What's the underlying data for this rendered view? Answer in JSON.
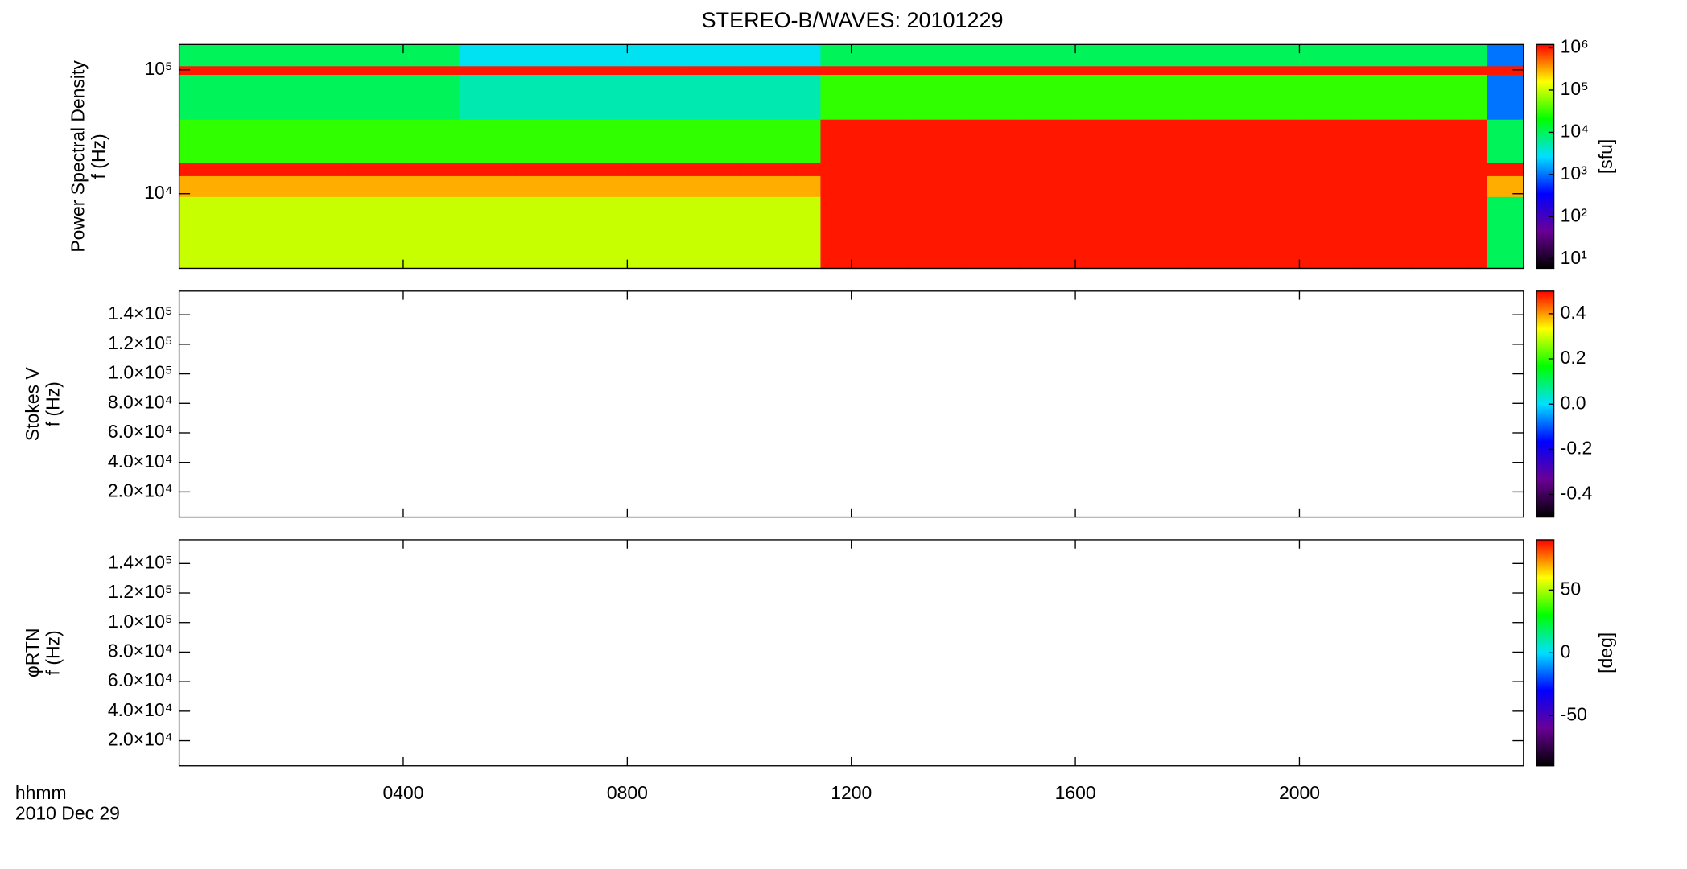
{
  "chart_data": [
    {
      "type": "heatmap",
      "title": "STEREO-B/WAVES: 20101229",
      "ylabel": [
        "Power Spectral Density",
        "f (Hz)"
      ],
      "xlim": [
        0,
        24
      ],
      "ylim": [
        2500,
        160000
      ],
      "yscale": "log",
      "yticks": [
        {
          "value": 10000,
          "label": "10⁴"
        },
        {
          "value": 100000,
          "label": "10⁵"
        }
      ],
      "x_bins": [
        0,
        1,
        2,
        3,
        4,
        5,
        6,
        7,
        8,
        9,
        10,
        11,
        11.45,
        12,
        13,
        14,
        15,
        16,
        17,
        18,
        19,
        20,
        21,
        22,
        23,
        23.35,
        24
      ],
      "y_bins": [
        2500,
        9500,
        14000,
        18000,
        40000,
        92000,
        108000,
        160000
      ],
      "values": [
        [
          100000,
          100000,
          100000,
          100000,
          100000,
          100000,
          100000,
          100000,
          100000,
          100000,
          100000,
          100000,
          1000000,
          1000000,
          1000000,
          1000000,
          1000000,
          1000000,
          1000000,
          1000000,
          1000000,
          1000000,
          1000000,
          1000000,
          1000000,
          10000
        ],
        [
          300000,
          300000,
          300000,
          300000,
          300000,
          300000,
          300000,
          300000,
          300000,
          300000,
          300000,
          300000,
          1000000,
          1000000,
          1000000,
          1000000,
          1000000,
          1000000,
          1000000,
          1000000,
          1000000,
          1000000,
          1000000,
          1000000,
          1000000,
          300000
        ],
        [
          1000000,
          1000000,
          1000000,
          1000000,
          1000000,
          1000000,
          1000000,
          1000000,
          1000000,
          1000000,
          1000000,
          1000000,
          1000000,
          1000000,
          1000000,
          1000000,
          1000000,
          1000000,
          1000000,
          1000000,
          1000000,
          1000000,
          1000000,
          1000000,
          1000000,
          1000000
        ],
        [
          30000,
          30000,
          30000,
          30000,
          30000,
          30000,
          30000,
          30000,
          30000,
          30000,
          30000,
          30000,
          1000000,
          1000000,
          1000000,
          1000000,
          1000000,
          1000000,
          1000000,
          1000000,
          1000000,
          1000000,
          1000000,
          1000000,
          1000000,
          10000
        ],
        [
          10000,
          10000,
          10000,
          10000,
          10000,
          5000,
          5000,
          5000,
          5000,
          5000,
          5000,
          5000,
          30000,
          30000,
          30000,
          30000,
          30000,
          30000,
          30000,
          30000,
          30000,
          30000,
          30000,
          30000,
          30000,
          1000
        ],
        [
          1000000,
          1000000,
          1000000,
          1000000,
          1000000,
          1000000,
          1000000,
          1000000,
          1000000,
          1000000,
          1000000,
          1000000,
          1000000,
          1000000,
          1000000,
          1000000,
          1000000,
          1000000,
          1000000,
          1000000,
          1000000,
          1000000,
          1000000,
          1000000,
          1000000,
          1000000
        ],
        [
          10000,
          10000,
          10000,
          10000,
          10000,
          3000,
          3000,
          3000,
          3000,
          3000,
          3000,
          3000,
          10000,
          10000,
          10000,
          10000,
          10000,
          10000,
          10000,
          10000,
          10000,
          10000,
          10000,
          10000,
          10000,
          1000
        ]
      ],
      "colormap": [
        "#000000",
        "#6a0096",
        "#0000ff",
        "#00e0ff",
        "#00ff00",
        "#ffff00",
        "#ff0000"
      ],
      "colorbar": {
        "clim": [
          6,
          1200000
        ],
        "scale": "log",
        "ticks": [
          {
            "value": 10,
            "label": "10¹"
          },
          {
            "value": 100,
            "label": "10²"
          },
          {
            "value": 1000,
            "label": "10³"
          },
          {
            "value": 10000,
            "label": "10⁴"
          },
          {
            "value": 100000,
            "label": "10⁵"
          },
          {
            "value": 1000000,
            "label": "10⁶"
          }
        ],
        "label": "[sfu]"
      }
    },
    {
      "type": "heatmap",
      "ylabel": [
        "Stokes V",
        "f (Hz)"
      ],
      "xlim": [
        0,
        24
      ],
      "ylim": [
        3000,
        156000
      ],
      "yscale": "linear",
      "yticks": [
        {
          "value": 20000,
          "label": "2.0×10⁴"
        },
        {
          "value": 40000,
          "label": "4.0×10⁴"
        },
        {
          "value": 60000,
          "label": "6.0×10⁴"
        },
        {
          "value": 80000,
          "label": "8.0×10⁴"
        },
        {
          "value": 100000,
          "label": "1.0×10⁵"
        },
        {
          "value": 120000,
          "label": "1.2×10⁵"
        },
        {
          "value": 140000,
          "label": "1.4×10⁵"
        }
      ],
      "colormap": [
        "#000000",
        "#6a0096",
        "#0000ff",
        "#00e0ff",
        "#00ff00",
        "#ffff00",
        "#ff0000"
      ],
      "colorbar": {
        "clim": [
          -0.5,
          0.5
        ],
        "scale": "linear",
        "ticks": [
          -0.4,
          -0.2,
          {
            "value": 0,
            "label": "0.0"
          },
          0.2,
          0.4
        ]
      }
    },
    {
      "type": "heatmap",
      "ylabel": [
        "φRTN",
        "f (Hz)"
      ],
      "xlim": [
        0,
        24
      ],
      "ylim": [
        3000,
        156000
      ],
      "yscale": "linear",
      "yticks": [
        {
          "value": 20000,
          "label": "2.0×10⁴"
        },
        {
          "value": 40000,
          "label": "4.0×10⁴"
        },
        {
          "value": 60000,
          "label": "6.0×10⁴"
        },
        {
          "value": 80000,
          "label": "8.0×10⁴"
        },
        {
          "value": 100000,
          "label": "1.0×10⁵"
        },
        {
          "value": 120000,
          "label": "1.2×10⁵"
        },
        {
          "value": 140000,
          "label": "1.4×10⁵"
        }
      ],
      "xticks": [
        {
          "value": 4,
          "label": "0400"
        },
        {
          "value": 8,
          "label": "0800"
        },
        {
          "value": 12,
          "label": "1200"
        },
        {
          "value": 16,
          "label": "1600"
        },
        {
          "value": 20,
          "label": "2000"
        }
      ],
      "xlabel": [
        "hhmm",
        "2010 Dec 29"
      ],
      "colormap": [
        "#000000",
        "#6a0096",
        "#0000ff",
        "#00e0ff",
        "#00ff00",
        "#ffff00",
        "#ff0000"
      ],
      "colorbar": {
        "clim": [
          -90,
          90
        ],
        "scale": "linear",
        "ticks": [
          -50,
          0,
          50
        ],
        "label": "[deg]"
      }
    }
  ]
}
